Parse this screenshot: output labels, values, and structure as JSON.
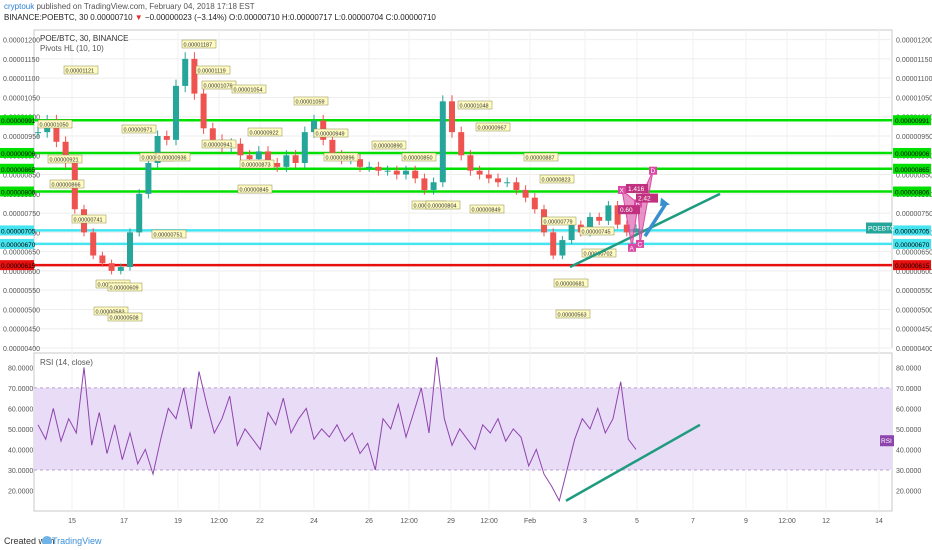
{
  "header": {
    "author": "cryptouk",
    "published": " published on TradingView.com, February 04, 2018 17:18 EST",
    "symbol": "BINANCE:POEBTC, 30",
    "last": "0.00000710",
    "change": "−0.00000023 (−3.14%)",
    "ohlc": "O:0.00000710 H:0.00000717 L:0.00000704 C:0.00000710"
  },
  "footer": {
    "created_with": "Created with",
    "brand": "TradingView"
  },
  "colors": {
    "candle_up": "#26a69a",
    "candle_down": "#ef5350",
    "support_green": "#00e000",
    "support_cyan": "#44e5f0",
    "support_red": "#e8100f",
    "trendline": "#1f9b7f",
    "arrow": "#3a8fd0",
    "pattern": "#d94aa4",
    "rsi": "#8e44ad",
    "rsi_band": "#e9dcf7",
    "pivot_label": "#fffbc2"
  },
  "chart_data": [
    {
      "type": "candlestick",
      "title": "POE/BTC, 30, BINANCE",
      "indicator": "Pivots HL (10, 10)",
      "ylim": [
        4e-06,
        1.225e-05
      ],
      "x_ticks": [
        "15",
        "17",
        "19",
        "12:00",
        "22",
        "24",
        "26",
        "12:00",
        "29",
        "12:00",
        "Feb",
        "3",
        "5",
        "7",
        "9",
        "12:00",
        "12",
        "14"
      ],
      "y_ticks": [
        "0.00001200",
        "0.00001150",
        "0.00001100",
        "0.00001050",
        "0.00001000",
        "0.00000950",
        "0.00000900",
        "0.00000850",
        "0.00000800",
        "0.00000750",
        "0.00000700",
        "0.00000650",
        "0.00000600",
        "0.00000550",
        "0.00000500",
        "0.00000450",
        "0.00000400"
      ],
      "horizontal_levels": [
        {
          "value": 9.91e-06,
          "label": "0.00000991",
          "color": "green"
        },
        {
          "value": 9.06e-06,
          "label": "0.00000906",
          "color": "green"
        },
        {
          "value": 8.65e-06,
          "label": "0.00000865",
          "color": "green"
        },
        {
          "value": 8.06e-06,
          "label": "0.00000806",
          "color": "green"
        },
        {
          "value": 7.05e-06,
          "label": "0.00000705",
          "color": "cyan"
        },
        {
          "value": 6.7e-06,
          "label": "0.00000670",
          "color": "cyan"
        },
        {
          "value": 6.15e-06,
          "label": "0.00000615",
          "color": "red"
        }
      ],
      "last_price_tag": "POEBTC",
      "series": [
        {
          "name": "POE/BTC",
          "values": [
            9.6e-06,
            9.9e-06,
            9.35e-06,
            8.8e-06,
            7.6e-06,
            7e-06,
            6.4e-06,
            6.2e-06,
            6e-06,
            6.1e-06,
            7e-06,
            8e-06,
            8.8e-06,
            9.5e-06,
            9.4e-06,
            1.08e-05,
            1.15e-05,
            1.06e-05,
            9.7e-06,
            9.4e-06,
            9.2e-06,
            9.3e-06,
            9e-06,
            8.9e-06,
            9.1e-06,
            8.8e-06,
            8.7e-06,
            9e-06,
            8.8e-06,
            9.6e-06,
            9.9e-06,
            9.4e-06,
            9e-06,
            8.9e-06,
            8.9e-06,
            8.7e-06,
            8.7e-06,
            8.6e-06,
            8.6e-06,
            8.5e-06,
            8.6e-06,
            8.4e-06,
            8.1e-06,
            8.3e-06,
            1.04e-05,
            9.6e-06,
            9e-06,
            8.6e-06,
            8.5e-06,
            8.4e-06,
            8.3e-06,
            8.3e-06,
            8.1e-06,
            7.9e-06,
            7.6e-06,
            7e-06,
            6.4e-06,
            6.8e-06,
            7.2e-06,
            7e-06,
            7.4e-06,
            7.3e-06,
            7.7e-06,
            7.2e-06,
            7e-06,
            7.1e-06
          ]
        }
      ],
      "pivot_labels": [
        "0.00001050",
        "0.00000921",
        "0.00000866",
        "0.00000741",
        "0.00000660",
        "0.00000583",
        "0.00001121",
        "0.00000971",
        "0.00000915",
        "0.00000751",
        "0.00000609",
        "0.00000508",
        "0.00001187",
        "0.00001119",
        "0.00001076",
        "0.00001054",
        "0.00000936",
        "0.00000941",
        "0.00000922",
        "0.00000873",
        "0.00000845",
        "0.00001059",
        "0.00000949",
        "0.00000896",
        "0.00000890",
        "0.00000850",
        "0.00000861",
        "0.00001048",
        "0.00000967",
        "0.00000804",
        "0.00000849",
        "0.00000887",
        "0.00000823",
        "0.00000779",
        "0.00000745",
        "0.00000702",
        "0.00000681",
        "0.00000563"
      ],
      "pattern": {
        "points": [
          "X",
          "A",
          "B",
          "C",
          "D"
        ],
        "ratios": [
          "1.416",
          "0.60",
          "2.42"
        ]
      }
    },
    {
      "type": "line",
      "title": "RSI (14, close)",
      "ylim": [
        10,
        87
      ],
      "y_ticks": [
        "80.0000",
        "70.0000",
        "60.0000",
        "50.0000",
        "40.0000",
        "30.0000",
        "20.0000"
      ],
      "bands": [
        30,
        70
      ],
      "tag": "RSI",
      "series": [
        {
          "name": "RSI",
          "values": [
            52,
            45,
            60,
            44,
            55,
            48,
            80,
            42,
            58,
            38,
            52,
            35,
            48,
            33,
            40,
            28,
            45,
            60,
            55,
            70,
            50,
            78,
            62,
            48,
            55,
            66,
            42,
            50,
            45,
            40,
            58,
            52,
            65,
            48,
            55,
            60,
            45,
            50,
            46,
            52,
            44,
            48,
            38,
            43,
            30,
            55,
            50,
            62,
            46,
            58,
            70,
            48,
            85,
            55,
            42,
            50,
            45,
            40,
            52,
            48,
            55,
            44,
            50,
            46,
            32,
            40,
            28,
            22,
            15,
            30,
            45,
            55,
            50,
            60,
            48,
            55,
            73,
            45,
            40
          ]
        }
      ],
      "trendline": {
        "x_start": "Feb 2",
        "y_start": 15,
        "x_end": "Feb 6",
        "y_end": 52
      }
    }
  ]
}
